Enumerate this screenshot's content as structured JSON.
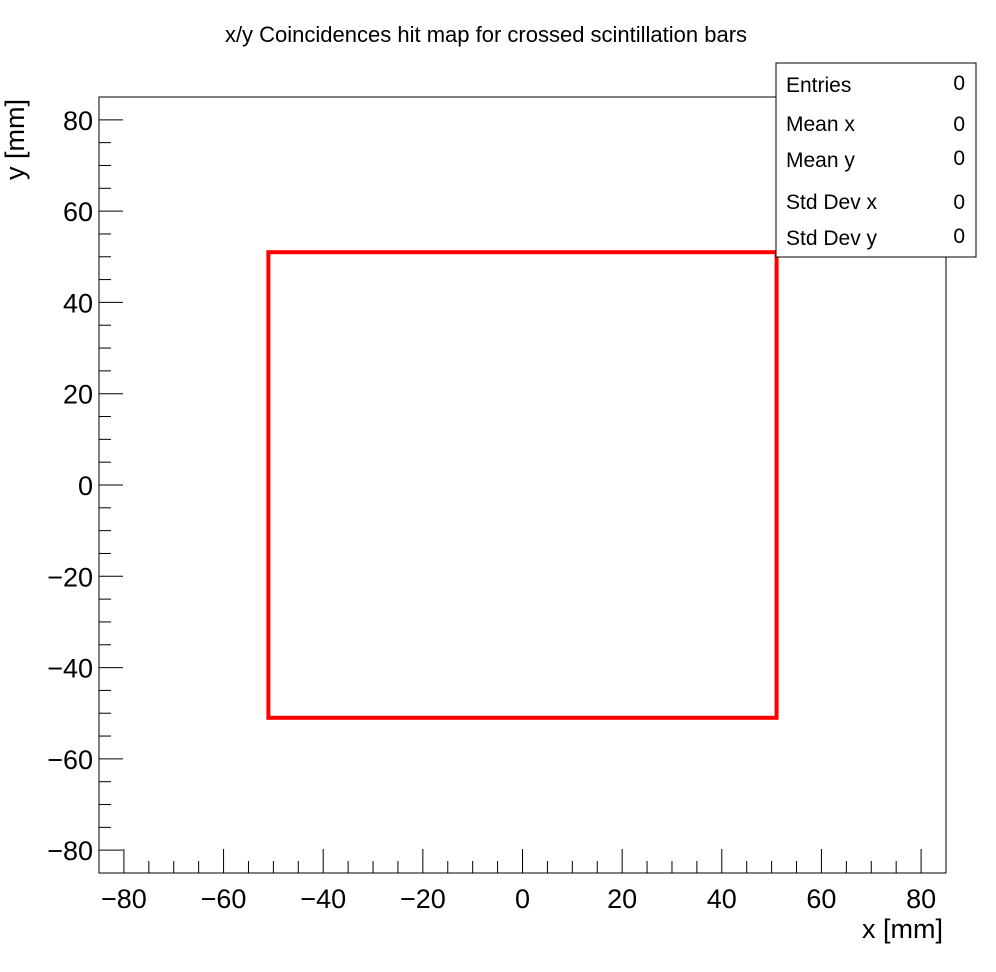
{
  "chart_data": {
    "type": "scatter",
    "title": "x/y Coincidences hit map for crossed scintillation bars",
    "xlabel": "x [mm]",
    "ylabel": "y [mm]",
    "xlim": [
      -85,
      85
    ],
    "ylim": [
      -85,
      85
    ],
    "x_ticks": [
      -80,
      -60,
      -40,
      -20,
      0,
      20,
      40,
      60,
      80
    ],
    "y_ticks": [
      -80,
      -60,
      -40,
      -20,
      0,
      20,
      40,
      60,
      80
    ],
    "x_tick_labels": [
      "−80",
      "−60",
      "−40",
      "−20",
      "0",
      "20",
      "40",
      "60",
      "80"
    ],
    "y_tick_labels": [
      "−80",
      "−60",
      "−40",
      "−20",
      "0",
      "20",
      "40",
      "60",
      "80"
    ],
    "points": [],
    "region": {
      "x": [
        -51,
        51
      ],
      "y": [
        -51,
        51
      ],
      "color": "#ff0000"
    },
    "stats": [
      {
        "label": "Entries",
        "value": "0"
      },
      {
        "label": "Mean x",
        "value": "0"
      },
      {
        "label": "Mean y",
        "value": "0"
      },
      {
        "label": "Std Dev x",
        "value": "0"
      },
      {
        "label": "Std Dev y",
        "value": "0"
      }
    ]
  }
}
